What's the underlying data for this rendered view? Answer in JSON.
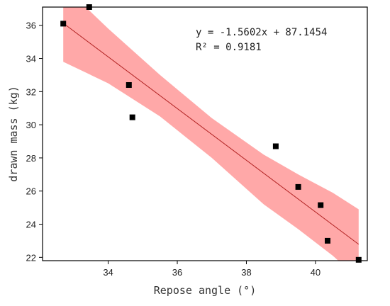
{
  "chart_data": {
    "type": "scatter",
    "title": "",
    "xlabel": "Repose angle (°)",
    "ylabel": "drawn mass (kg)",
    "xlim": [
      32.1,
      41.5
    ],
    "ylim": [
      21.8,
      37.1
    ],
    "x_ticks": [
      34,
      36,
      38,
      40
    ],
    "y_ticks": [
      22,
      24,
      26,
      28,
      30,
      32,
      34,
      36
    ],
    "x_tick_labels": [
      "34",
      "36",
      "38",
      "40"
    ],
    "y_tick_labels": [
      "22",
      "24",
      "26",
      "28",
      "30",
      "32",
      "34",
      "36"
    ],
    "grid": false,
    "series": [
      {
        "points": [
          {
            "x": 32.7,
            "y": 36.1
          },
          {
            "x": 33.45,
            "y": 37.1
          },
          {
            "x": 34.6,
            "y": 32.4
          },
          {
            "x": 34.7,
            "y": 30.45
          },
          {
            "x": 38.85,
            "y": 28.7
          },
          {
            "x": 39.5,
            "y": 26.25
          },
          {
            "x": 40.15,
            "y": 25.15
          },
          {
            "x": 40.35,
            "y": 23.0
          },
          {
            "x": 41.25,
            "y": 21.85
          }
        ],
        "color": "#000000"
      }
    ],
    "fit": {
      "slope": -1.5602,
      "intercept": 87.1454,
      "x_range": [
        32.7,
        41.25
      ],
      "color": "#b22222",
      "equation": "y = -1.5602x + 87.1454",
      "r2_label": "R² = 0.9181"
    },
    "confidence_band": {
      "color": "#ff9999",
      "x": [
        32.7,
        34.0,
        35.5,
        37.0,
        38.5,
        39.5,
        40.5,
        41.25
      ],
      "upper": [
        38.4,
        35.8,
        33.0,
        30.4,
        28.2,
        27.0,
        25.9,
        24.9
      ],
      "lower": [
        33.8,
        32.5,
        30.5,
        28.0,
        25.2,
        23.7,
        22.1,
        20.7
      ]
    }
  }
}
